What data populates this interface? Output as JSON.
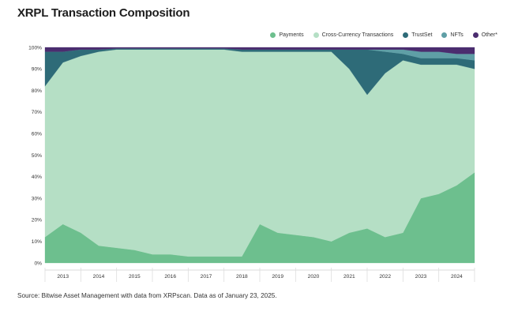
{
  "title": "XRPL Transaction Composition",
  "source": "Source: Bitwise Asset Management with data from XRPscan. Data as of January 23, 2025.",
  "legend": [
    {
      "label": "Payments",
      "color": "#6dbf8e"
    },
    {
      "label": "Cross-Currency Transactions",
      "color": "#b5dfc5"
    },
    {
      "label": "TrustSet",
      "color": "#2e6b78"
    },
    {
      "label": "NFTs",
      "color": "#5f9fa6"
    },
    {
      "label": "Other*",
      "color": "#4b2d6f"
    }
  ],
  "chart_data": {
    "type": "area",
    "stacked": true,
    "title": "XRPL Transaction Composition",
    "xlabel": "",
    "ylabel": "",
    "ylim": [
      0,
      100
    ],
    "yticks": [
      "0%",
      "10%",
      "20%",
      "30%",
      "40%",
      "50%",
      "60%",
      "70%",
      "80%",
      "90%",
      "100%"
    ],
    "x": [
      "2013",
      "2013.5",
      "2014",
      "2014.5",
      "2015",
      "2015.5",
      "2016",
      "2016.5",
      "2017",
      "2017.5",
      "2018",
      "2018.5",
      "2019",
      "2019.5",
      "2020",
      "2020.5",
      "2021",
      "2021.5",
      "2022",
      "2022.5",
      "2023",
      "2023.5",
      "2024",
      "2024.5",
      "2025"
    ],
    "xticks": [
      "2013",
      "2014",
      "2015",
      "2016",
      "2017",
      "2018",
      "2019",
      "2020",
      "2021",
      "2022",
      "2023",
      "2024"
    ],
    "series": [
      {
        "name": "Payments",
        "color": "#6dbf8e",
        "values": [
          12,
          18,
          14,
          8,
          7,
          6,
          4,
          4,
          3,
          3,
          3,
          3,
          18,
          14,
          13,
          12,
          10,
          14,
          16,
          12,
          14,
          30,
          32,
          36,
          42
        ]
      },
      {
        "name": "Cross-Currency Transactions",
        "color": "#b5dfc5",
        "values": [
          70,
          75,
          82,
          90,
          92,
          93,
          95,
          95,
          96,
          96,
          96,
          95,
          80,
          84,
          85,
          86,
          88,
          76,
          62,
          76,
          80,
          62,
          60,
          56,
          48
        ]
      },
      {
        "name": "TrustSet",
        "color": "#2e6b78",
        "values": [
          16,
          5,
          3,
          1,
          0.5,
          0.5,
          0.5,
          0.5,
          0.5,
          0.5,
          0.5,
          1,
          1,
          1,
          1,
          1,
          1,
          9,
          21,
          10,
          3,
          3,
          3,
          3,
          4
        ]
      },
      {
        "name": "NFTs",
        "color": "#5f9fa6",
        "values": [
          0,
          0,
          0,
          0,
          0,
          0,
          0,
          0,
          0,
          0,
          0,
          0,
          0,
          0,
          0,
          0,
          0,
          0,
          0,
          1,
          2,
          3,
          3,
          2,
          3
        ]
      },
      {
        "name": "Other*",
        "color": "#4b2d6f",
        "values": [
          2,
          2,
          1,
          1,
          0.5,
          0.5,
          0.5,
          0.5,
          0.5,
          0.5,
          0.5,
          1,
          1,
          1,
          1,
          1,
          1,
          1,
          1,
          1,
          1,
          2,
          2,
          3,
          3
        ]
      }
    ]
  }
}
